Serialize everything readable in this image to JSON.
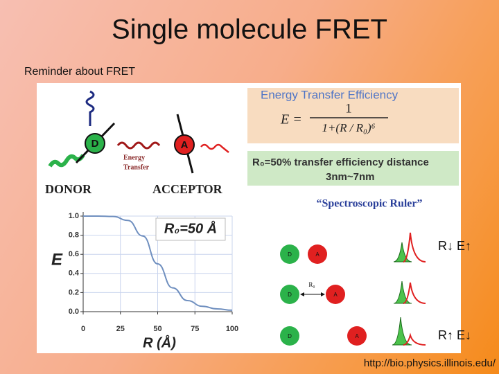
{
  "title": "Single molecule FRET",
  "subtitle": "Reminder about FRET",
  "figure": {
    "header": "Energy Transfer Efficiency",
    "formula": {
      "lhs": "E =",
      "numerator": "1",
      "denominator": "1+(R / R₀)⁶"
    },
    "definition": {
      "line1": "R₀=50% transfer efficiency distance",
      "line2": "3nm~7nm"
    },
    "ruler": "“Spectroscopic Ruler”",
    "donor": "DONOR",
    "acceptor": "ACCEPTOR",
    "donor_symbol": "D",
    "acceptor_symbol": "A",
    "transfer_label": [
      "Energy",
      "Transfer"
    ],
    "rows": [
      {
        "donor": "D",
        "acceptor": "A",
        "note": "R↓ E↑"
      },
      {
        "donor": "D",
        "acceptor": "A",
        "distance": "R₀"
      },
      {
        "donor": "D",
        "acceptor": "A",
        "note": "R↑ E↓"
      }
    ]
  },
  "chart_data": {
    "type": "line",
    "x": [
      0,
      10,
      20,
      30,
      40,
      50,
      60,
      70,
      80,
      90,
      100
    ],
    "values": [
      1.0,
      1.0,
      0.996,
      0.955,
      0.792,
      0.5,
      0.249,
      0.116,
      0.056,
      0.029,
      0.015
    ],
    "color": "#6f8fbf",
    "xlim": [
      0,
      100
    ],
    "ylim": [
      0,
      1.0
    ],
    "xticks": [
      0,
      25,
      50,
      75,
      100
    ],
    "yticks": [
      {
        "value": 0,
        "label": "0.0"
      },
      {
        "value": 0.2,
        "label": "0.2"
      },
      {
        "value": 0.4,
        "label": "0.4"
      },
      {
        "value": 0.6,
        "label": "0.6"
      },
      {
        "value": 0.8,
        "label": "0.8"
      },
      {
        "value": 1.0,
        "label": "1.0"
      }
    ],
    "xlabel": "R (Å)",
    "ylabel": "E",
    "annotation": "R₀=50 Å",
    "grid": true
  },
  "footer": "http://bio.physics.illinois.edu/"
}
